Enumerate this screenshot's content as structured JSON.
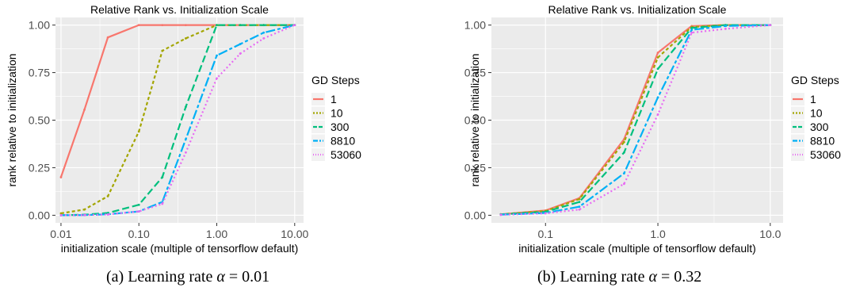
{
  "chart_data": [
    {
      "type": "line",
      "title": "Relative Rank vs. Initialization Scale",
      "xlabel": "initialization scale (multiple of tensorflow default)",
      "ylabel": "rank relative to initialization",
      "x_scale": "log",
      "xlim": [
        0.0085,
        13
      ],
      "ylim": [
        -0.04,
        1.04
      ],
      "x_ticks": [
        0.01,
        0.1,
        1,
        10
      ],
      "x_tick_labels": [
        "0.01",
        "0.10",
        "1.00",
        "10.00"
      ],
      "y_ticks": [
        0,
        0.25,
        0.5,
        0.75,
        1
      ],
      "y_tick_labels": [
        "0.00",
        "0.25",
        "0.50",
        "0.75",
        "1.00"
      ],
      "grid": true,
      "legend_title": "GD Steps",
      "legend_position": "right",
      "caption_prefix": "(a) Learning rate ",
      "caption_symbol": "α",
      "caption_suffix": " = 0.01",
      "series": [
        {
          "name": "1",
          "color": "#F8766D",
          "dash": "",
          "x": [
            0.01,
            0.02,
            0.04,
            0.1,
            0.2,
            0.4,
            1,
            2,
            4,
            10
          ],
          "y": [
            0.2,
            0.555,
            0.935,
            1.0,
            1.0,
            1.0,
            1.0,
            1.0,
            1.0,
            1.0
          ]
        },
        {
          "name": "10",
          "color": "#A3A500",
          "dash": "4,3",
          "x": [
            0.01,
            0.02,
            0.04,
            0.1,
            0.2,
            0.4,
            1,
            2,
            4,
            10
          ],
          "y": [
            0.01,
            0.03,
            0.1,
            0.44,
            0.865,
            0.93,
            1.0,
            1.0,
            1.0,
            1.0
          ]
        },
        {
          "name": "300",
          "color": "#00BF7D",
          "dash": "9,4",
          "x": [
            0.01,
            0.02,
            0.04,
            0.1,
            0.2,
            0.4,
            1,
            2,
            4,
            10
          ],
          "y": [
            0.0,
            0.003,
            0.012,
            0.055,
            0.2,
            0.57,
            1.0,
            1.0,
            1.0,
            1.0
          ]
        },
        {
          "name": "8810",
          "color": "#00B0F6",
          "dash": "12,3,4,3",
          "x": [
            0.01,
            0.02,
            0.04,
            0.1,
            0.2,
            0.4,
            1,
            2,
            4,
            10
          ],
          "y": [
            0.0,
            0.001,
            0.005,
            0.02,
            0.07,
            0.4,
            0.84,
            0.9,
            0.96,
            1.0
          ]
        },
        {
          "name": "53060",
          "color": "#E76BF3",
          "dash": "2,3",
          "x": [
            0.01,
            0.02,
            0.04,
            0.1,
            0.2,
            0.4,
            1,
            2,
            4,
            10
          ],
          "y": [
            0.0,
            0.001,
            0.004,
            0.02,
            0.06,
            0.33,
            0.72,
            0.85,
            0.93,
            1.0
          ]
        }
      ]
    },
    {
      "type": "line",
      "title": "Relative Rank vs. Initialization Scale",
      "xlabel": "initialization scale (multiple of tensorflow default)",
      "ylabel": "rank relative to initialization",
      "x_scale": "log",
      "xlim": [
        0.033,
        13
      ],
      "ylim": [
        -0.04,
        1.04
      ],
      "x_ticks": [
        0.1,
        1,
        10
      ],
      "x_tick_labels": [
        "0.1",
        "1.0",
        "10.0"
      ],
      "y_ticks": [
        0,
        0.25,
        0.5,
        0.75,
        1
      ],
      "y_tick_labels": [
        "0.00",
        "0.25",
        "0.50",
        "0.75",
        "1.00"
      ],
      "grid": true,
      "legend_title": "GD Steps",
      "legend_position": "right",
      "caption_prefix": "(b) Learning rate ",
      "caption_symbol": "α",
      "caption_suffix": " = 0.32",
      "series": [
        {
          "name": "1",
          "color": "#F8766D",
          "dash": "",
          "x": [
            0.04,
            0.1,
            0.2,
            0.5,
            1,
            2,
            4,
            10
          ],
          "y": [
            0.005,
            0.025,
            0.09,
            0.4,
            0.855,
            0.995,
            1.0,
            1.0
          ]
        },
        {
          "name": "10",
          "color": "#A3A500",
          "dash": "4,3",
          "x": [
            0.04,
            0.1,
            0.2,
            0.5,
            1,
            2,
            4,
            10
          ],
          "y": [
            0.005,
            0.022,
            0.085,
            0.385,
            0.83,
            0.99,
            1.0,
            1.0
          ]
        },
        {
          "name": "300",
          "color": "#00BF7D",
          "dash": "9,4",
          "x": [
            0.04,
            0.1,
            0.2,
            0.5,
            1,
            2,
            4,
            10
          ],
          "y": [
            0.004,
            0.018,
            0.07,
            0.33,
            0.77,
            0.985,
            1.0,
            1.0
          ]
        },
        {
          "name": "8810",
          "color": "#00B0F6",
          "dash": "12,3,4,3",
          "x": [
            0.04,
            0.1,
            0.2,
            0.5,
            1,
            2,
            4,
            10
          ],
          "y": [
            0.003,
            0.012,
            0.045,
            0.22,
            0.62,
            0.975,
            0.995,
            1.0
          ]
        },
        {
          "name": "53060",
          "color": "#E76BF3",
          "dash": "2,3",
          "x": [
            0.04,
            0.1,
            0.2,
            0.5,
            1,
            2,
            4,
            10
          ],
          "y": [
            0.002,
            0.01,
            0.03,
            0.165,
            0.53,
            0.96,
            0.98,
            1.0
          ]
        }
      ]
    }
  ]
}
